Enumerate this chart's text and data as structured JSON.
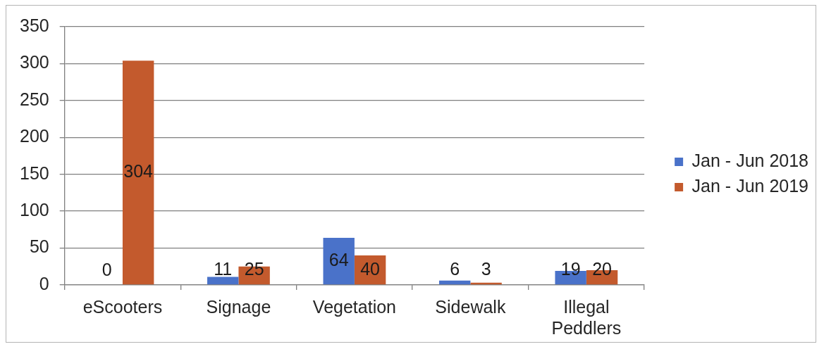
{
  "chart_data": {
    "type": "bar",
    "categories": [
      "eScooters",
      "Signage",
      "Vegetation",
      "Sidewalk",
      "Illegal Peddlers"
    ],
    "series": [
      {
        "name": "Jan - Jun 2018",
        "color": "#4a72c9",
        "values": [
          0,
          11,
          64,
          6,
          19
        ]
      },
      {
        "name": "Jan - Jun 2019",
        "color": "#c35a2d",
        "values": [
          304,
          25,
          40,
          3,
          20
        ]
      }
    ],
    "ylim": [
      0,
      350
    ],
    "yticks": [
      0,
      50,
      100,
      150,
      200,
      250,
      300,
      350
    ],
    "grid": "y",
    "legend": "right",
    "data_labels": true
  }
}
